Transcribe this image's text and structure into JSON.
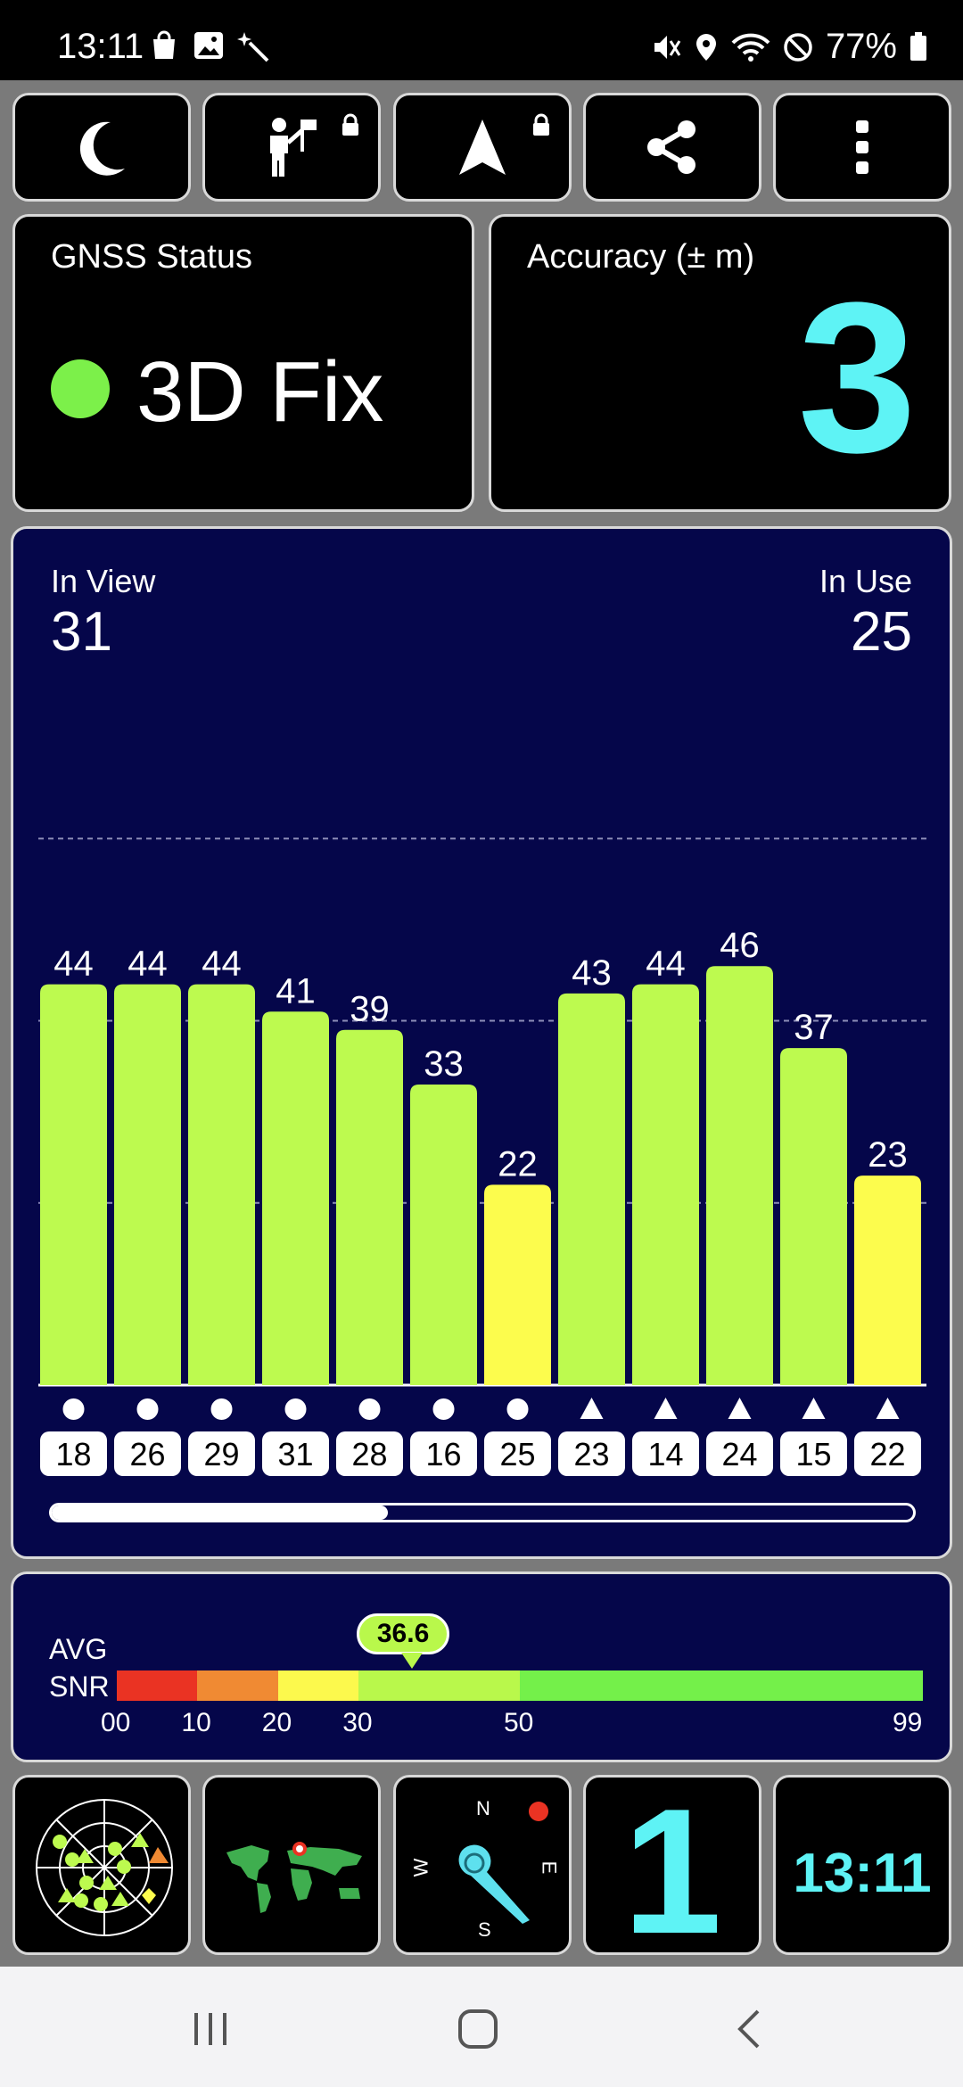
{
  "status_bar": {
    "time": "13:11",
    "battery": "77%",
    "left_icons": [
      "shopping-bag-icon",
      "gallery-icon",
      "magic-wand-icon"
    ],
    "right_icons": [
      "mute-icon",
      "location-icon",
      "wifi-icon",
      "do-not-disturb-icon",
      "battery-icon"
    ]
  },
  "toolbar": {
    "buttons": [
      {
        "name": "night-mode-button",
        "icon": "moon-icon"
      },
      {
        "name": "activity-button",
        "icon": "person-flag-icon",
        "locked": true
      },
      {
        "name": "navigation-button",
        "icon": "navigation-arrow-icon",
        "locked": true
      },
      {
        "name": "share-button",
        "icon": "share-icon"
      },
      {
        "name": "more-button",
        "icon": "more-vertical-icon"
      }
    ]
  },
  "gnss_status": {
    "title": "GNSS Status",
    "value": "3D Fix",
    "dot_color": "#7cf04a"
  },
  "accuracy": {
    "title": "Accuracy (± m)",
    "value": "3",
    "color": "#5ef3f5"
  },
  "satellites": {
    "in_view_label": "In View",
    "in_view": "31",
    "in_use_label": "In Use",
    "in_use": "25",
    "scroll_fraction": 0.39
  },
  "chart_data": {
    "type": "bar",
    "categories": [
      "18",
      "26",
      "29",
      "31",
      "28",
      "16",
      "25",
      "23",
      "14",
      "24",
      "15",
      "22"
    ],
    "values": [
      44,
      44,
      44,
      41,
      39,
      33,
      22,
      43,
      44,
      46,
      37,
      23
    ],
    "markers": [
      "circle",
      "circle",
      "circle",
      "circle",
      "circle",
      "circle",
      "circle",
      "triangle",
      "triangle",
      "triangle",
      "triangle",
      "triangle"
    ],
    "ylim": [
      0,
      66
    ],
    "gridlines": [
      20,
      40,
      60
    ],
    "colors": {
      "strong": "#bdfa4f",
      "weak": "#fcfc4d"
    },
    "weak_threshold": 30
  },
  "snr": {
    "label_line1": "AVG",
    "label_line2": "SNR",
    "average": "36.6",
    "average_value": 36.6,
    "ticks": [
      "00",
      "10",
      "20",
      "30",
      "50",
      "99"
    ],
    "segments": [
      {
        "from": 0,
        "to": 10,
        "color": "#ea3323"
      },
      {
        "from": 10,
        "to": 20,
        "color": "#f08a33"
      },
      {
        "from": 20,
        "to": 30,
        "color": "#fcf94d"
      },
      {
        "from": 30,
        "to": 50,
        "color": "#b9f84b"
      },
      {
        "from": 50,
        "to": 99,
        "color": "#74f04a"
      }
    ]
  },
  "bottom_tiles": {
    "sky_view": "sky-plot-icon",
    "world_map": "world-map-icon",
    "compass": {
      "n": "N",
      "e": "E",
      "s": "S",
      "w": "W"
    },
    "count": "1",
    "clock": "13:11"
  },
  "nav": {
    "recents": "recents-icon",
    "home": "home-icon",
    "back": "back-icon"
  }
}
